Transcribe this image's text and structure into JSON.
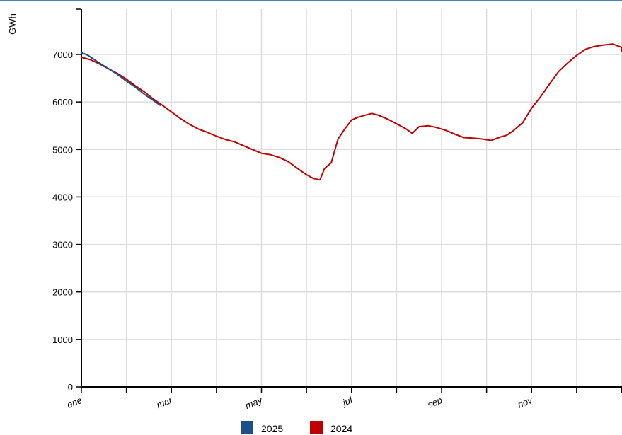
{
  "chart_data": {
    "type": "line",
    "ylabel": "GWh",
    "xlabel": "",
    "ylim": [
      0,
      8000
    ],
    "yticks": [
      0,
      1000,
      2000,
      3000,
      4000,
      5000,
      6000,
      7000
    ],
    "xlim": [
      0,
      12
    ],
    "xtick_positions": [
      0,
      1,
      2,
      3,
      4,
      5,
      6,
      7,
      8,
      9,
      10,
      11,
      12
    ],
    "xtick_labels": [
      {
        "pos": 0,
        "label": "ene"
      },
      {
        "pos": 2,
        "label": "mar"
      },
      {
        "pos": 4,
        "label": "may"
      },
      {
        "pos": 6,
        "label": "jul"
      },
      {
        "pos": 8,
        "label": "sep"
      },
      {
        "pos": 10,
        "label": "nov"
      }
    ],
    "grid": true,
    "legend_position": "bottom",
    "series": [
      {
        "name": "2025",
        "color": "#1f4e8c",
        "points": [
          [
            0,
            7040
          ],
          [
            0.15,
            6980
          ],
          [
            0.35,
            6850
          ],
          [
            0.6,
            6700
          ],
          [
            0.8,
            6580
          ],
          [
            1.0,
            6440
          ],
          [
            1.2,
            6310
          ],
          [
            1.4,
            6160
          ],
          [
            1.6,
            6030
          ],
          [
            1.75,
            5930
          ]
        ]
      },
      {
        "name": "2024",
        "color": "#c00000",
        "points": [
          [
            0,
            6940
          ],
          [
            0.2,
            6890
          ],
          [
            0.4,
            6800
          ],
          [
            0.6,
            6700
          ],
          [
            0.8,
            6600
          ],
          [
            1.0,
            6480
          ],
          [
            1.2,
            6340
          ],
          [
            1.4,
            6210
          ],
          [
            1.6,
            6060
          ],
          [
            1.8,
            5930
          ],
          [
            2.0,
            5790
          ],
          [
            2.2,
            5650
          ],
          [
            2.4,
            5530
          ],
          [
            2.6,
            5430
          ],
          [
            2.8,
            5360
          ],
          [
            3.0,
            5280
          ],
          [
            3.2,
            5210
          ],
          [
            3.4,
            5160
          ],
          [
            3.6,
            5080
          ],
          [
            3.8,
            5000
          ],
          [
            4.0,
            4920
          ],
          [
            4.2,
            4890
          ],
          [
            4.4,
            4830
          ],
          [
            4.6,
            4740
          ],
          [
            4.8,
            4600
          ],
          [
            5.0,
            4470
          ],
          [
            5.15,
            4390
          ],
          [
            5.3,
            4360
          ],
          [
            5.4,
            4600
          ],
          [
            5.55,
            4720
          ],
          [
            5.7,
            5220
          ],
          [
            5.85,
            5430
          ],
          [
            6.0,
            5620
          ],
          [
            6.15,
            5680
          ],
          [
            6.3,
            5720
          ],
          [
            6.45,
            5760
          ],
          [
            6.6,
            5720
          ],
          [
            6.8,
            5640
          ],
          [
            7.0,
            5540
          ],
          [
            7.2,
            5440
          ],
          [
            7.35,
            5340
          ],
          [
            7.5,
            5480
          ],
          [
            7.7,
            5500
          ],
          [
            7.9,
            5460
          ],
          [
            8.1,
            5400
          ],
          [
            8.3,
            5320
          ],
          [
            8.5,
            5250
          ],
          [
            8.7,
            5240
          ],
          [
            8.9,
            5220
          ],
          [
            9.1,
            5190
          ],
          [
            9.3,
            5260
          ],
          [
            9.45,
            5300
          ],
          [
            9.6,
            5400
          ],
          [
            9.8,
            5560
          ],
          [
            10.0,
            5870
          ],
          [
            10.2,
            6110
          ],
          [
            10.4,
            6380
          ],
          [
            10.6,
            6640
          ],
          [
            10.8,
            6820
          ],
          [
            11.0,
            6980
          ],
          [
            11.2,
            7110
          ],
          [
            11.4,
            7170
          ],
          [
            11.6,
            7200
          ],
          [
            11.8,
            7220
          ],
          [
            12.0,
            7150
          ],
          [
            12.2,
            7060
          ]
        ]
      }
    ]
  }
}
